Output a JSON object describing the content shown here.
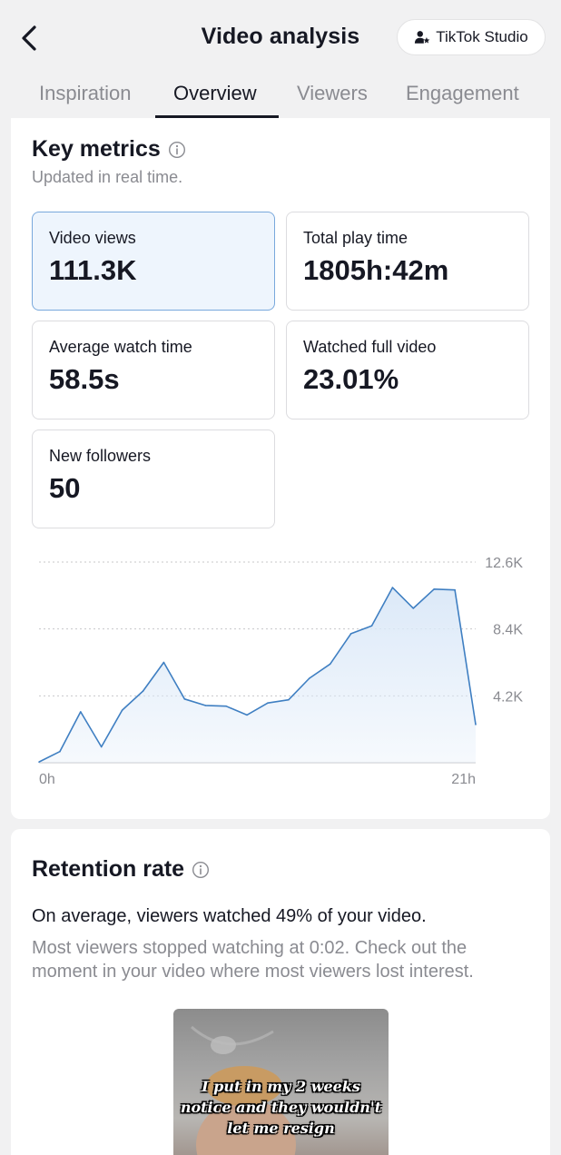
{
  "header": {
    "title": "Video analysis",
    "back_icon": "chevron-left-icon",
    "studio_button": {
      "label": "TikTok Studio",
      "icon": "person-star-icon"
    }
  },
  "tabs": [
    {
      "label": "Inspiration",
      "active": false
    },
    {
      "label": "Overview",
      "active": true
    },
    {
      "label": "Viewers",
      "active": false
    },
    {
      "label": "Engagement",
      "active": false
    }
  ],
  "key_metrics": {
    "title": "Key metrics",
    "subtitle": "Updated in real time.",
    "metrics": [
      {
        "label": "Video views",
        "value": "111.3K",
        "selected": true
      },
      {
        "label": "Total play time",
        "value": "1805h:42m",
        "selected": false
      },
      {
        "label": "Average watch time",
        "value": "58.5s",
        "selected": false
      },
      {
        "label": "Watched full video",
        "value": "23.01%",
        "selected": false
      },
      {
        "label": "New followers",
        "value": "50",
        "selected": false
      }
    ]
  },
  "chart_data": {
    "type": "area",
    "x": [
      0,
      1,
      2,
      3,
      4,
      5,
      6,
      7,
      8,
      9,
      10,
      11,
      12,
      13,
      14,
      15,
      16,
      17,
      18,
      19,
      20,
      21
    ],
    "values": [
      50,
      700,
      3200,
      1000,
      3300,
      4500,
      6300,
      4000,
      3600,
      3550,
      3000,
      3750,
      3950,
      5300,
      6200,
      8100,
      8600,
      11000,
      9700,
      10900,
      10850,
      2400
    ],
    "x_tick_labels": [
      "0h",
      "21h"
    ],
    "y_ticks": [
      4200,
      8400,
      12600
    ],
    "y_tick_labels": [
      "4.2K",
      "8.4K",
      "12.6K"
    ],
    "ylim": [
      0,
      12600
    ],
    "grid": true,
    "line_color": "#3f7fc2",
    "fill_color": "#dce9f8"
  },
  "retention": {
    "title": "Retention rate",
    "headline": "On average, viewers watched 49% of your video.",
    "detail": "Most viewers stopped watching at 0:02. Check out the moment in your video where most viewers lost interest.",
    "thumbnail_caption": [
      "I put in my 2 weeks",
      "notice and they wouldn't",
      "let me resign"
    ]
  }
}
